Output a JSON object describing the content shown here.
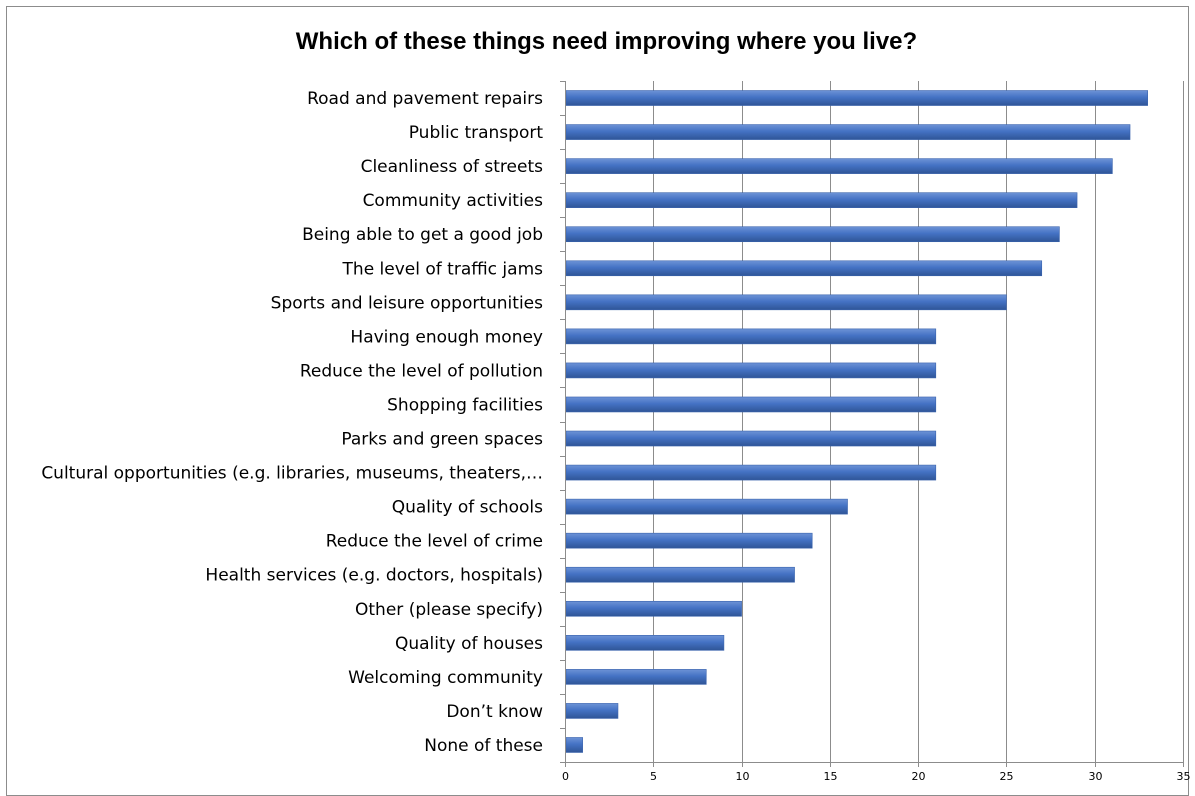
{
  "chart_data": {
    "type": "bar",
    "orientation": "horizontal",
    "title": "Which of these things need improving where you live?",
    "xlabel": "",
    "ylabel": "",
    "categories": [
      "Road and pavement repairs",
      "Public transport",
      "Cleanliness of streets",
      "Community activities",
      "Being able to get a good job",
      "The level of traffic jams",
      "Sports and leisure opportunities",
      "Having enough money",
      "Reduce the level of pollution",
      "Shopping facilities",
      "Parks and green spaces",
      "Cultural opportunities (e.g. libraries, museums, theaters,…",
      "Quality of schools",
      "Reduce the level of crime",
      "Health services (e.g. doctors, hospitals)",
      "Other (please specify)",
      "Quality of houses",
      "Welcoming community",
      "Don’t know",
      "None of these"
    ],
    "values": [
      33,
      32,
      31,
      29,
      28,
      27,
      25,
      21,
      21,
      21,
      21,
      21,
      16,
      14,
      13,
      10,
      9,
      8,
      3,
      1
    ],
    "xlim": [
      0,
      35
    ],
    "xticks": [
      0,
      5,
      10,
      15,
      20,
      25,
      30,
      35
    ],
    "grid": true,
    "legend": "none",
    "bar_color": "#4472c4"
  }
}
